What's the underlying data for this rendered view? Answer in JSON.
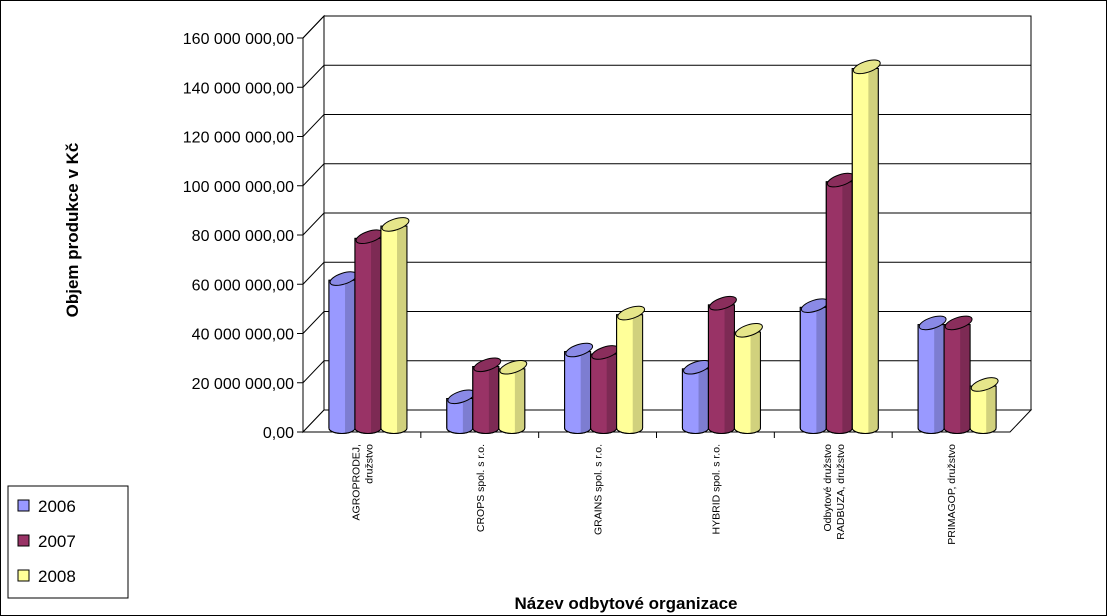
{
  "chart_data": {
    "type": "bar",
    "title": "",
    "xlabel": "Název odbytové organizace",
    "ylabel": "Objem produkce v Kč",
    "ylim": [
      0,
      160000000
    ],
    "y_ticks": [
      "0,00",
      "20 000 000,00",
      "40 000 000,00",
      "60 000 000,00",
      "80 000 000,00",
      "100 000 000,00",
      "120 000 000,00",
      "140 000 000,00",
      "160 000 000,00"
    ],
    "categories": [
      [
        "AGROPRODEJ,",
        "družstvo"
      ],
      [
        "CROPS spol. s r.o."
      ],
      [
        "GRAINS spol. s r.o."
      ],
      [
        "HYBRID spol. s r.o."
      ],
      [
        "Odbytové družstvo",
        "RADBUZA, družstvo"
      ],
      [
        "PRIMAGOP, družstvo"
      ]
    ],
    "series": [
      {
        "name": "2006",
        "color": "#9999FF",
        "values": [
          60000000,
          12000000,
          31000000,
          24000000,
          49000000,
          42000000
        ]
      },
      {
        "name": "2007",
        "color": "#993366",
        "values": [
          77000000,
          25000000,
          30000000,
          50000000,
          100000000,
          42000000
        ]
      },
      {
        "name": "2008",
        "color": "#FFFF99",
        "values": [
          82000000,
          24000000,
          46000000,
          39000000,
          146000000,
          17000000
        ]
      }
    ],
    "grid": true,
    "legend_position": "bottom-left",
    "style": "3d-clustered-column"
  }
}
